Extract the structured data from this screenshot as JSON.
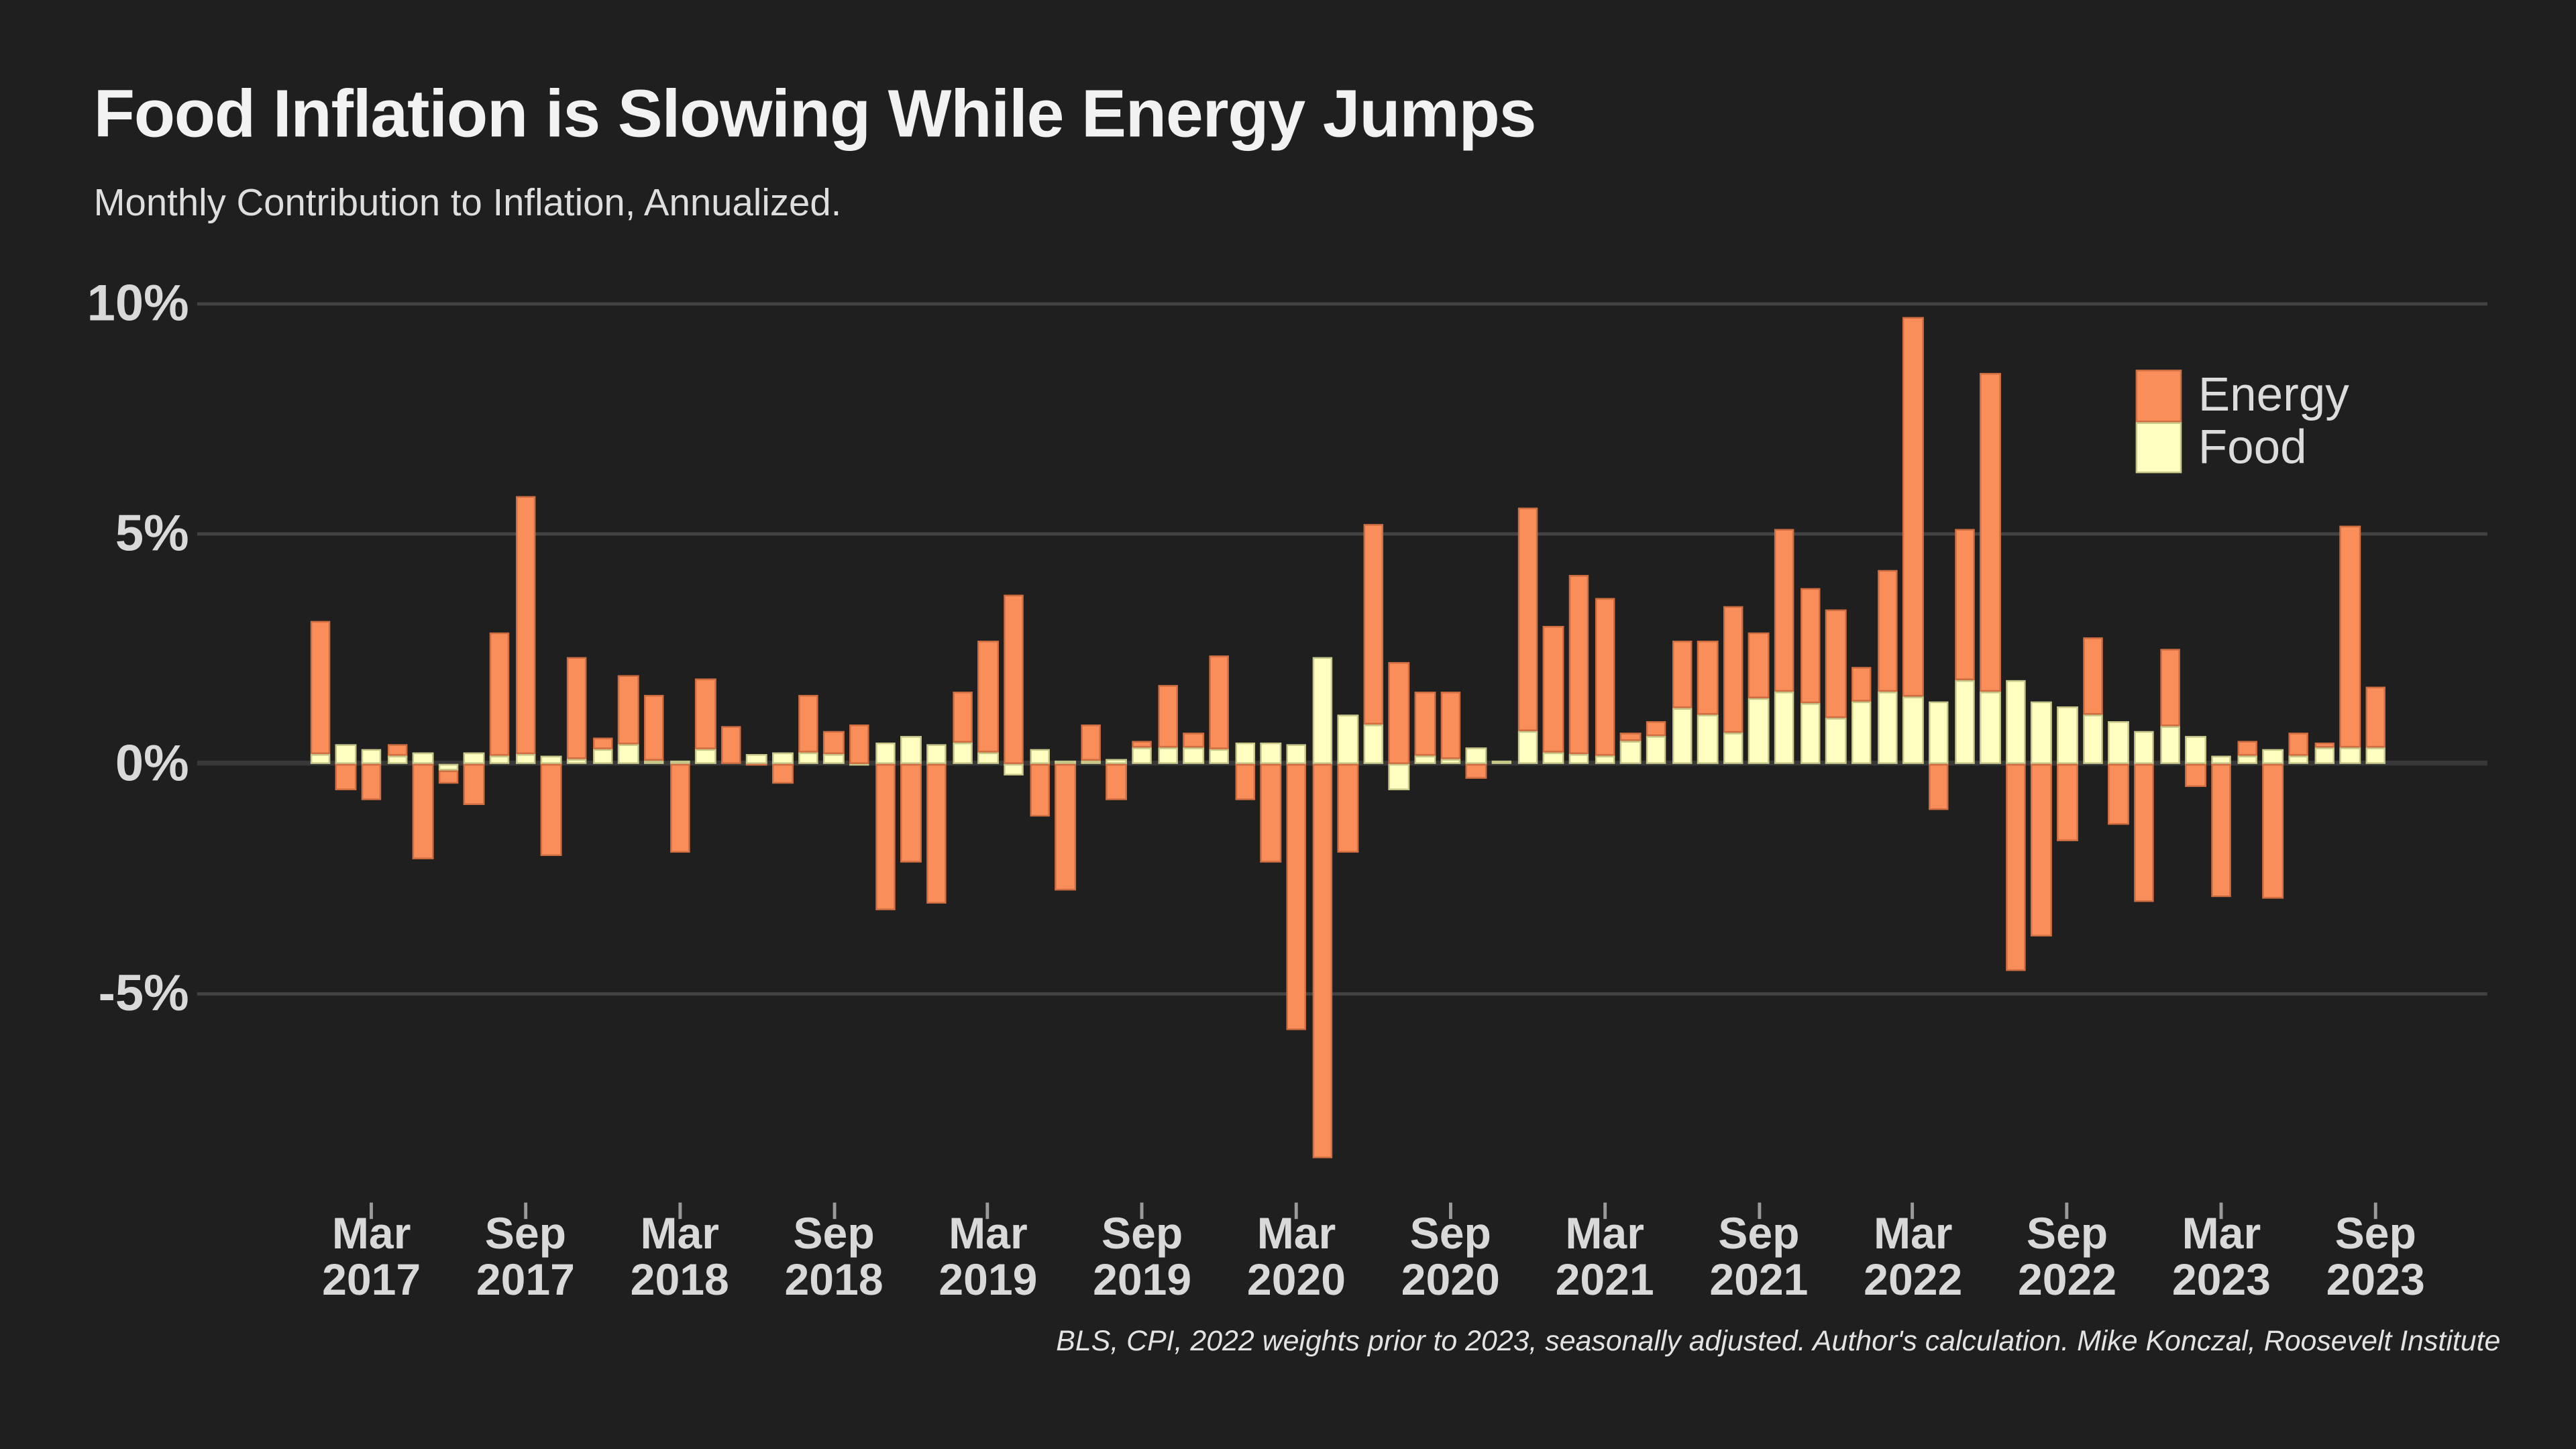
{
  "title": "Food Inflation is Slowing While Energy Jumps",
  "subtitle": "Monthly Contribution to Inflation, Annualized.",
  "footnote": "BLS, CPI, 2022 weights prior to 2023, seasonally adjusted. Author's calculation. Mike Konczal, Roosevelt Institute",
  "colors": {
    "background": "#1f1f1f",
    "title_text": "#f2f2f2",
    "axis_text": "#d9d9d9",
    "grid": "#424242",
    "zero_line": "#383838",
    "energy": "#fa8e5b",
    "food": "#ffffc2",
    "tick": "#9a9a9a"
  },
  "legend": {
    "items": [
      {
        "label": "Energy",
        "color": "#fa8e5b"
      },
      {
        "label": "Food",
        "color": "#ffffc2"
      }
    ]
  },
  "y_axis": {
    "ticks": [
      {
        "label": "10%",
        "value": 10
      },
      {
        "label": "5%",
        "value": 5
      },
      {
        "label": "0%",
        "value": 0
      },
      {
        "label": "-5%",
        "value": -5
      }
    ]
  },
  "x_axis": {
    "ticks": [
      {
        "index": 2,
        "month": "Mar",
        "year": "2017"
      },
      {
        "index": 8,
        "month": "Sep",
        "year": "2017"
      },
      {
        "index": 14,
        "month": "Mar",
        "year": "2018"
      },
      {
        "index": 20,
        "month": "Sep",
        "year": "2018"
      },
      {
        "index": 26,
        "month": "Mar",
        "year": "2019"
      },
      {
        "index": 32,
        "month": "Sep",
        "year": "2019"
      },
      {
        "index": 38,
        "month": "Mar",
        "year": "2020"
      },
      {
        "index": 44,
        "month": "Sep",
        "year": "2020"
      },
      {
        "index": 50,
        "month": "Mar",
        "year": "2021"
      },
      {
        "index": 56,
        "month": "Sep",
        "year": "2021"
      },
      {
        "index": 62,
        "month": "Mar",
        "year": "2022"
      },
      {
        "index": 68,
        "month": "Sep",
        "year": "2022"
      },
      {
        "index": 74,
        "month": "Mar",
        "year": "2023"
      },
      {
        "index": 80,
        "month": "Sep",
        "year": "2023"
      }
    ]
  },
  "chart_data": {
    "type": "bar",
    "stacked": true,
    "title": "Food Inflation is Slowing While Energy Jumps",
    "subtitle": "Monthly Contribution to Inflation, Annualized.",
    "xlabel": "",
    "ylabel": "",
    "unit": "percent",
    "ylim": [
      -9.3,
      10.8
    ],
    "ytick_values": [
      10,
      5,
      0,
      -5
    ],
    "grid": "horizontal",
    "legend_position": "upper right",
    "categories": [
      "Jan 2017",
      "Feb 2017",
      "Mar 2017",
      "Apr 2017",
      "May 2017",
      "Jun 2017",
      "Jul 2017",
      "Aug 2017",
      "Sep 2017",
      "Oct 2017",
      "Nov 2017",
      "Dec 2017",
      "Jan 2018",
      "Feb 2018",
      "Mar 2018",
      "Apr 2018",
      "May 2018",
      "Jun 2018",
      "Jul 2018",
      "Aug 2018",
      "Sep 2018",
      "Oct 2018",
      "Nov 2018",
      "Dec 2018",
      "Jan 2019",
      "Feb 2019",
      "Mar 2019",
      "Apr 2019",
      "May 2019",
      "Jun 2019",
      "Jul 2019",
      "Aug 2019",
      "Sep 2019",
      "Oct 2019",
      "Nov 2019",
      "Dec 2019",
      "Jan 2020",
      "Feb 2020",
      "Mar 2020",
      "Apr 2020",
      "May 2020",
      "Jun 2020",
      "Jul 2020",
      "Aug 2020",
      "Sep 2020",
      "Oct 2020",
      "Nov 2020",
      "Dec 2020",
      "Jan 2021",
      "Feb 2021",
      "Mar 2021",
      "Apr 2021",
      "May 2021",
      "Jun 2021",
      "Jul 2021",
      "Aug 2021",
      "Sep 2021",
      "Oct 2021",
      "Nov 2021",
      "Dec 2021",
      "Jan 2022",
      "Feb 2022",
      "Mar 2022",
      "Apr 2022",
      "May 2022",
      "Jun 2022",
      "Jul 2022",
      "Aug 2022",
      "Sep 2022",
      "Oct 2022",
      "Nov 2022",
      "Dec 2022",
      "Jan 2023",
      "Feb 2023",
      "Mar 2023",
      "Apr 2023",
      "May 2023",
      "Jun 2023",
      "Jul 2023",
      "Aug 2023",
      "Sep 2023"
    ],
    "series": [
      {
        "name": "Energy",
        "color": "#fa8e5b",
        "values": [
          2.9,
          -0.6,
          -0.8,
          0.25,
          -2.1,
          -0.3,
          -0.9,
          2.7,
          5.6,
          -2.0,
          2.2,
          0.25,
          1.5,
          1.45,
          -1.95,
          1.55,
          0.8,
          -0.05,
          -0.45,
          1.25,
          0.5,
          0.85,
          -3.2,
          -2.15,
          -3.05,
          1.1,
          2.4,
          3.65,
          -1.15,
          -2.75,
          0.8,
          -0.8,
          0.15,
          1.35,
          0.3,
          2.05,
          -0.8,
          -2.15,
          -5.8,
          -8.6,
          -1.95,
          4.35,
          2.2,
          1.4,
          1.45,
          -0.35,
          0.0,
          4.85,
          2.75,
          3.9,
          3.45,
          0.15,
          0.3,
          1.45,
          1.6,
          2.75,
          1.45,
          3.55,
          2.5,
          2.35,
          0.75,
          2.65,
          8.25,
          -1.0,
          3.3,
          6.95,
          -4.5,
          -3.75,
          -1.7,
          1.7,
          -1.35,
          -3.0,
          1.7,
          -0.5,
          -2.9,
          0.35,
          -2.95,
          0.5,
          0.1,
          4.8,
          1.3
        ]
      },
      {
        "name": "Food",
        "color": "#ffffc2",
        "values": [
          0.2,
          0.4,
          0.3,
          0.15,
          0.25,
          -0.15,
          0.25,
          0.15,
          0.2,
          0.15,
          0.1,
          0.3,
          0.4,
          0.05,
          0.05,
          0.3,
          0.0,
          0.2,
          0.25,
          0.25,
          0.2,
          -0.05,
          0.45,
          0.6,
          0.4,
          0.45,
          0.25,
          -0.25,
          0.3,
          0.05,
          0.05,
          0.1,
          0.35,
          0.35,
          0.35,
          0.3,
          0.45,
          0.45,
          0.4,
          2.3,
          1.05,
          0.85,
          -0.6,
          0.15,
          0.1,
          0.35,
          0.05,
          0.7,
          0.25,
          0.2,
          0.15,
          0.5,
          0.6,
          1.2,
          1.05,
          0.65,
          1.4,
          1.55,
          1.3,
          1.0,
          1.35,
          1.55,
          1.45,
          1.35,
          1.8,
          1.55,
          1.8,
          1.35,
          1.25,
          1.05,
          0.9,
          0.7,
          0.8,
          0.6,
          0.15,
          0.15,
          0.3,
          0.15,
          0.35,
          0.35,
          0.35
        ]
      }
    ]
  }
}
